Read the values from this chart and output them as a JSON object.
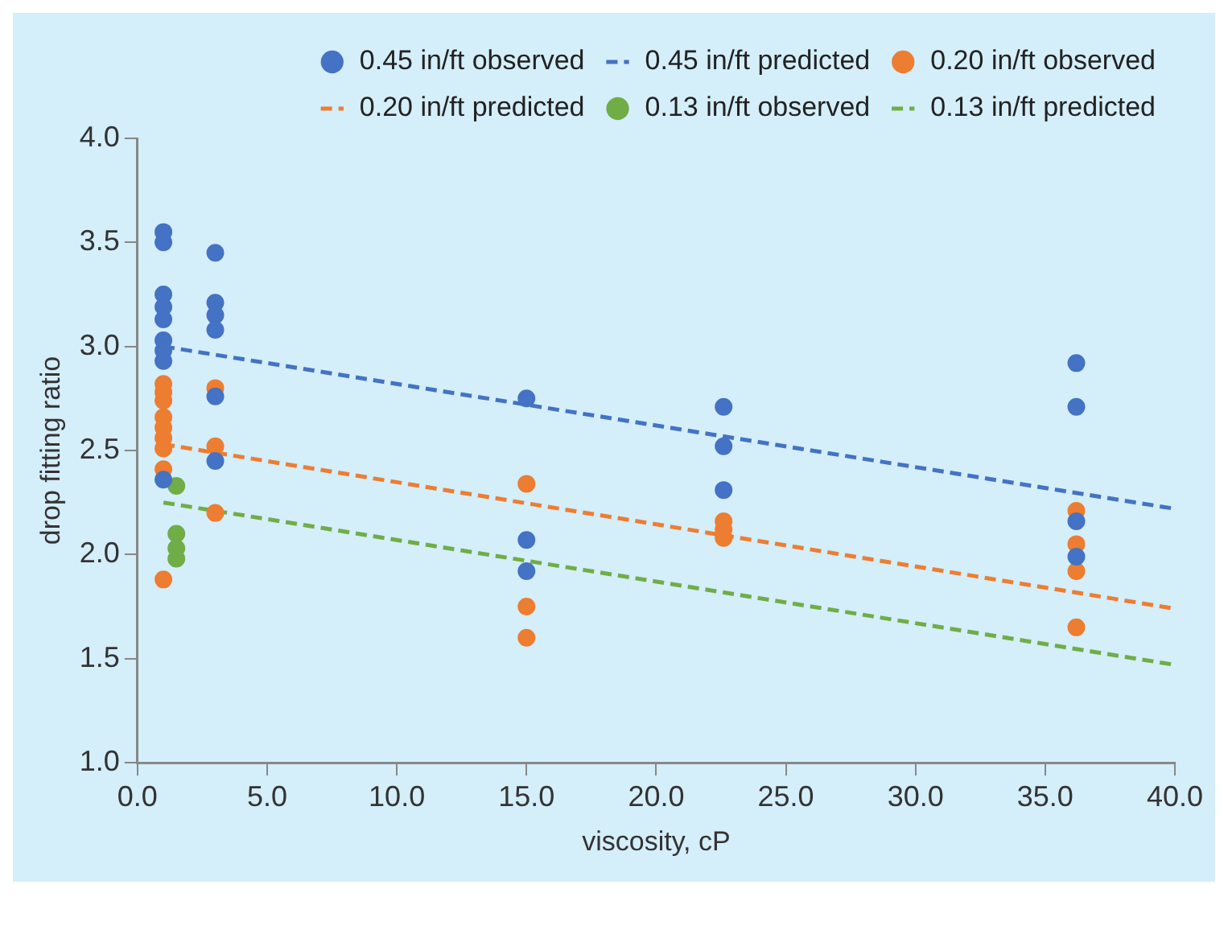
{
  "chart_data": {
    "type": "scatter",
    "xlabel": "viscosity, cP",
    "ylabel": "drop fitting ratio",
    "xlim": [
      0,
      40
    ],
    "xticks": [
      {
        "value": 0,
        "label": "0.0"
      },
      {
        "value": 5,
        "label": "5.0"
      },
      {
        "value": 10,
        "label": "10.0"
      },
      {
        "value": 15,
        "label": "15.0"
      },
      {
        "value": 20,
        "label": "20.0"
      },
      {
        "value": 25,
        "label": "25.0"
      },
      {
        "value": 30,
        "label": "30.0"
      },
      {
        "value": 35,
        "label": "35.0"
      },
      {
        "value": 40,
        "label": "40.0"
      }
    ],
    "ylim": [
      1,
      4
    ],
    "yticks": [
      {
        "value": 1,
        "label": "1.0"
      },
      {
        "value": 1.5,
        "label": "1.5"
      },
      {
        "value": 2,
        "label": "2.0"
      },
      {
        "value": 2.5,
        "label": "2.5"
      },
      {
        "value": 3,
        "label": "3.0"
      },
      {
        "value": 3.5,
        "label": "3.5"
      },
      {
        "value": 4,
        "label": "4.0"
      }
    ],
    "grid": false,
    "legend": "top right",
    "marker": "circle",
    "series": [
      {
        "name": "0.45 in/ft observed",
        "color": "#4472c4",
        "x": [
          1,
          1,
          1,
          1,
          1,
          1,
          1,
          1,
          1,
          3,
          3,
          3,
          3,
          3,
          3,
          15,
          15,
          15,
          22.6,
          22.6,
          22.6,
          36.2,
          36.2,
          36.2,
          36.2
        ],
        "values": [
          3.55,
          3.5,
          3.25,
          3.19,
          3.13,
          3.03,
          2.98,
          2.93,
          2.36,
          3.45,
          3.21,
          3.15,
          3.08,
          2.76,
          2.45,
          2.75,
          2.07,
          1.92,
          2.71,
          2.52,
          2.31,
          2.92,
          2.71,
          2.16,
          1.99
        ]
      },
      {
        "name": "0.45 in/ft predicted",
        "type": "line",
        "line_style": "dashed",
        "marker": "none",
        "color": "#4472c4",
        "x": [
          1,
          40
        ],
        "values": [
          3.0,
          2.22
        ]
      },
      {
        "name": "0.20 in/ft observed",
        "color": "#ed7d31",
        "x": [
          1,
          1,
          1,
          1,
          1,
          1,
          1,
          1,
          1,
          3,
          3,
          3,
          15,
          15,
          15,
          22.6,
          22.6,
          22.6,
          36.2,
          36.2,
          36.2,
          36.2
        ],
        "values": [
          2.82,
          2.78,
          2.74,
          2.66,
          2.61,
          2.56,
          2.51,
          2.41,
          1.88,
          2.8,
          2.52,
          2.2,
          2.34,
          1.75,
          1.6,
          2.16,
          2.12,
          2.08,
          2.21,
          2.05,
          1.92,
          1.65
        ]
      },
      {
        "name": "0.20 in/ft predicted",
        "type": "line",
        "line_style": "dashed",
        "marker": "none",
        "color": "#ed7d31",
        "x": [
          1,
          40
        ],
        "values": [
          2.53,
          1.74
        ]
      },
      {
        "name": "0.13 in/ft observed",
        "color": "#70ad47",
        "x": [
          1.5,
          1.5,
          1.5,
          1.5
        ],
        "values": [
          2.33,
          2.1,
          2.03,
          1.98
        ]
      },
      {
        "name": "0.13 in/ft predicted",
        "type": "line",
        "line_style": "dashed",
        "marker": "none",
        "color": "#70ad47",
        "x": [
          1,
          40
        ],
        "values": [
          2.25,
          1.47
        ]
      }
    ]
  }
}
